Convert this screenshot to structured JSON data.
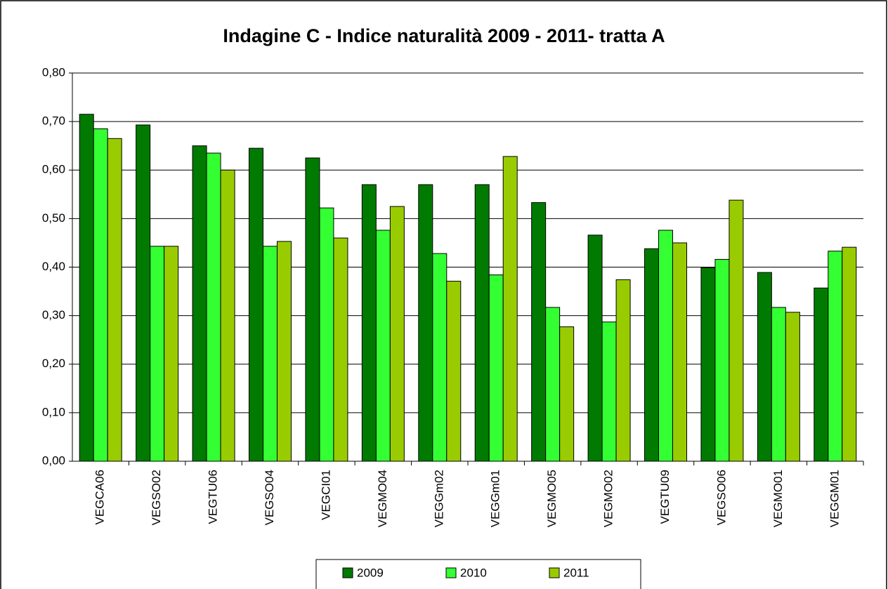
{
  "chart_data": {
    "type": "bar",
    "title": "Indagine C - Indice naturalità 2009 - 2011- tratta A",
    "categories": [
      "VEGCA06",
      "VEGSO02",
      "VEGTU06",
      "VEGSO04",
      "VEGCI01",
      "VEGMO04",
      "VEGGm02",
      "VEGGm01",
      "VEGMO05",
      "VEGMO02",
      "VEGTU09",
      "VEGSO06",
      "VEGMO01",
      "VEGGM01"
    ],
    "series": [
      {
        "name": "2009",
        "color": "#007a00",
        "values": [
          0.715,
          0.693,
          0.65,
          0.645,
          0.625,
          0.57,
          0.57,
          0.57,
          0.533,
          0.466,
          0.438,
          0.399,
          0.389,
          0.357
        ]
      },
      {
        "name": "2010",
        "color": "#33ff33",
        "values": [
          0.685,
          0.443,
          0.635,
          0.443,
          0.522,
          0.476,
          0.428,
          0.384,
          0.317,
          0.287,
          0.476,
          0.416,
          0.317,
          0.433
        ]
      },
      {
        "name": "2011",
        "color": "#99cc00",
        "values": [
          0.665,
          0.443,
          0.6,
          0.453,
          0.46,
          0.525,
          0.371,
          0.628,
          0.277,
          0.374,
          0.45,
          0.538,
          0.307,
          0.441
        ]
      }
    ],
    "ylim": [
      0,
      0.8
    ],
    "yticks": [
      {
        "value": 0,
        "label": "0,00"
      },
      {
        "value": 0.1,
        "label": "0,10"
      },
      {
        "value": 0.2,
        "label": "0,20"
      },
      {
        "value": 0.3,
        "label": "0,30"
      },
      {
        "value": 0.4,
        "label": "0,40"
      },
      {
        "value": 0.5,
        "label": "0,50"
      },
      {
        "value": 0.6,
        "label": "0,60"
      },
      {
        "value": 0.7,
        "label": "0,70"
      },
      {
        "value": 0.8,
        "label": "0,80"
      }
    ],
    "grid": true,
    "legend": "bottom"
  }
}
